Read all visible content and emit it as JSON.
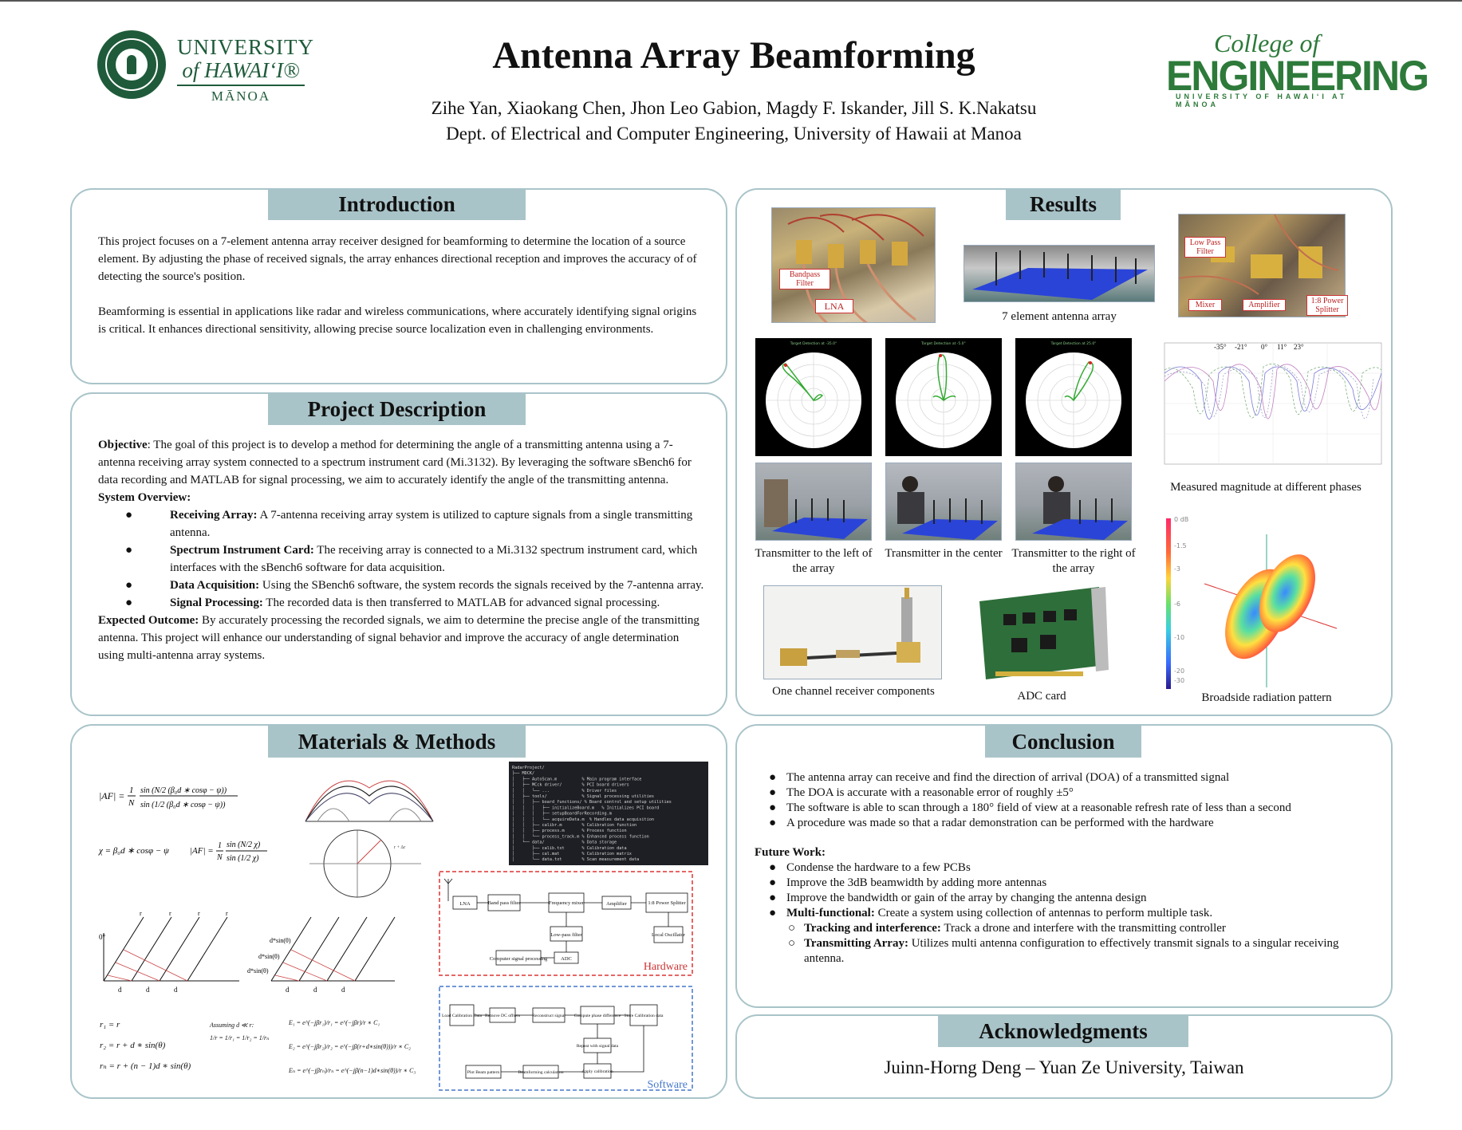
{
  "header": {
    "university": {
      "line1": "UNIVERSITY",
      "line2": "of HAWAIʻI®",
      "line3": "MĀNOA"
    },
    "title": "Antenna Array Beamforming",
    "authors": "Zihe Yan, Xiaokang Chen, Jhon Leo Gabion, Magdy F. Iskander, Jill S. K.Nakatsu",
    "department": "Dept. of Electrical and Computer Engineering, University of Hawaii at Manoa",
    "college": {
      "line1": "College of",
      "line2": "ENGINEERING",
      "line3": "UNIVERSITY OF HAWAIʻI AT MĀNOA"
    }
  },
  "introduction": {
    "heading": "Introduction",
    "p1": "This project focuses on a 7-element antenna array receiver designed for beamforming to determine the location of a source element. By adjusting the phase of received signals, the array enhances directional reception and improves the accuracy of of detecting the source's position.",
    "p2": "Beamforming is essential in applications like radar and wireless communications, where accurately identifying signal origins is critical. It enhances directional sensitivity, allowing precise source localization even in challenging environments."
  },
  "project": {
    "heading": "Project Description",
    "objective_label": "Objective",
    "objective_text": ": The goal of this project is to develop a method for determining the angle of a transmitting antenna using a 7-antenna receiving array system connected to a spectrum instrument card (Mi.3132). By leveraging the software sBench6 for data recording and MATLAB for signal processing, we aim to accurately identify the angle of the transmitting antenna.",
    "overview_label": "System Overview:",
    "bullets": [
      {
        "label": "Receiving Array:",
        "text": " A 7-antenna receiving array system is utilized to capture signals from a single transmitting antenna."
      },
      {
        "label": "Spectrum Instrument Card:",
        "text": " The receiving array is connected to a Mi.3132 spectrum instrument card, which interfaces with the sBench6 software for data acquisition."
      },
      {
        "label": "Data Acquisition:",
        "text": " Using the SBench6 software, the system records the signals received by the 7-antenna array."
      },
      {
        "label": "Signal Processing:",
        "text": " The recorded data is then transferred to MATLAB for advanced signal processing."
      }
    ],
    "outcome_label": "Expected Outcome:",
    "outcome_text": " By accurately processing the recorded signals, we aim to determine the precise angle of the transmitting antenna. This project will enhance our understanding of signal behavior and improve the accuracy of angle determination using multi-antenna array systems."
  },
  "methods": {
    "heading": "Materials & Methods",
    "eq_af": "|AF| = (1/N) · sin(N/2 (β₀d·cosφ − ψ)) / sin(1/2 (β₀d·cosφ − ψ))",
    "eq_chi": "χ = β₀d ∗ cosφ − ψ",
    "eq_af2": "|AF| = (1/N) · sin(N/2 χ) / sin(1/2 χ)",
    "eq_r1": "r₁ = r",
    "eq_r2": "r₂ = r + d ∗ sin(θ)",
    "eq_rn": "rₙ = r + (n − 1)d ∗ sin(θ)",
    "assuming": "Assuming d ≪ r:",
    "assume_eq": "1/r = 1/r₁ = 1/r₂ = 1/rₙ",
    "eq_e1": "E₁ = e^(−jβr₁)/r₁ = e^(−jβr)/r ∗ C₁",
    "eq_e2": "E₂ = e^(−jβr₂)/r₂ = e^(−jβ(r+d∗sin(θ)))/r ∗ C₂",
    "eq_en": "Eₙ = e^(−jβrₙ)/rₙ = e^(−jβ(n−1)d∗sin(θ))/r ∗ C₃",
    "geom_labels": {
      "r": "r",
      "d": "d",
      "zero": "0°",
      "dsin": "d*sin(θ)"
    },
    "code_lines": [
      "RadarProject/",
      "├── MDCK/",
      "│   ├── AutoScan.m          % Main program interface",
      "│   ├── MCck driver/        % PCI board drivers",
      "│   │   └── ...             % Driver files",
      "│   ├── tools/              % Signal processing utilities",
      "│   │   ├── board_functions/ % Board control and setup utilities",
      "│   │   │   ├── initializeBoard.m   % Initializes PCI board",
      "│   │   │   ├── setupBoardForRecording.m",
      "│   │   │   └── acquireData.m  % Handles data acquisition",
      "│   │   ├── calibr.m        % Calibration function",
      "│   │   ├── process.m       % Process function",
      "│   │   └── process_track.m % Enhanced process function",
      "│   └── data/               % Data storage",
      "│       ├── calib.txt       % Calibration data",
      "│       ├── cal.mat         % Calibration matrix",
      "│       └── data.txt        % Scan measurement data"
    ],
    "hardware": {
      "label": "Hardware",
      "blocks": [
        "LNA",
        "Band pass filter",
        "Frequency mixer",
        "Amplifier",
        "1:8 Power Splitter",
        "Low-pass filter",
        "Local Oscillator",
        "Computer signal processing",
        "ADC"
      ]
    },
    "software": {
      "label": "Software",
      "blocks": [
        "Load Calibration Data",
        "Remove DC offsets",
        "Reconstruct signal",
        "Compute phase difference",
        "Store Calibration data",
        "Repeat with signal data",
        "Apply calibration",
        "Beamforming calculation",
        "Plot Beam pattern"
      ]
    }
  },
  "results": {
    "heading": "Results",
    "labels": {
      "bandpass": "Bandpass Filter",
      "lna": "LNA",
      "lowpass": "Low Pass Filter",
      "mixer": "Mixer",
      "amplifier": "Amplifier",
      "splitter": "1:8 Power Splitter"
    },
    "cap_array": "7 element antenna array",
    "polar_titles": [
      "Target Detection at -35.0°",
      "Target Detection at -5.0°",
      "Target Detection at 25.0°"
    ],
    "cap_left": "Transmitter to the left of the array",
    "cap_center": "Transmitter in the center",
    "cap_right": "Transmitter to the right of the array",
    "cap_measured": "Measured magnitude at different phases",
    "angle_ticks": [
      "-35°",
      "-21°",
      "0°",
      "11°",
      "23°"
    ],
    "cap_receiver": "One channel receiver components",
    "cap_adc": "ADC card",
    "cap_broadside": "Broadside radiation pattern",
    "colorbar_ticks": [
      "0 dB",
      "-1.5",
      "-3",
      "-6",
      "-10",
      "-20",
      "-30"
    ]
  },
  "conclusion": {
    "heading": "Conclusion",
    "items": [
      "The antenna array can receive and find the direction of arrival (DOA) of a transmitted signal",
      "The DOA is accurate with a reasonable error of roughly ±5°",
      "The software is able to scan through a 180° field of view at a reasonable refresh rate of less than a second",
      "A procedure was made so that a radar demonstration can be performed with the hardware"
    ],
    "future_label": "Future Work:",
    "future": [
      "Condense the hardware to a few PCBs",
      "Improve the 3dB beamwidth by adding more antennas",
      "Improve the bandwidth or gain of the array by changing the antenna design"
    ],
    "multi_label": "Multi-functional:",
    "multi_text": " Create a system using collection of antennas to perform multiple task.",
    "sub": [
      {
        "label": "Tracking and interference:",
        "text": " Track a drone and interfere with the transmitting controller"
      },
      {
        "label": "Transmitting Array:",
        "text": " Utilizes multi antenna configuration to effectively transmit signals to a singular receiving antenna."
      }
    ]
  },
  "acknowledgments": {
    "heading": "Acknowledgments",
    "text": "Juinn-Horng Deng – Yuan Ze University, Taiwan"
  }
}
